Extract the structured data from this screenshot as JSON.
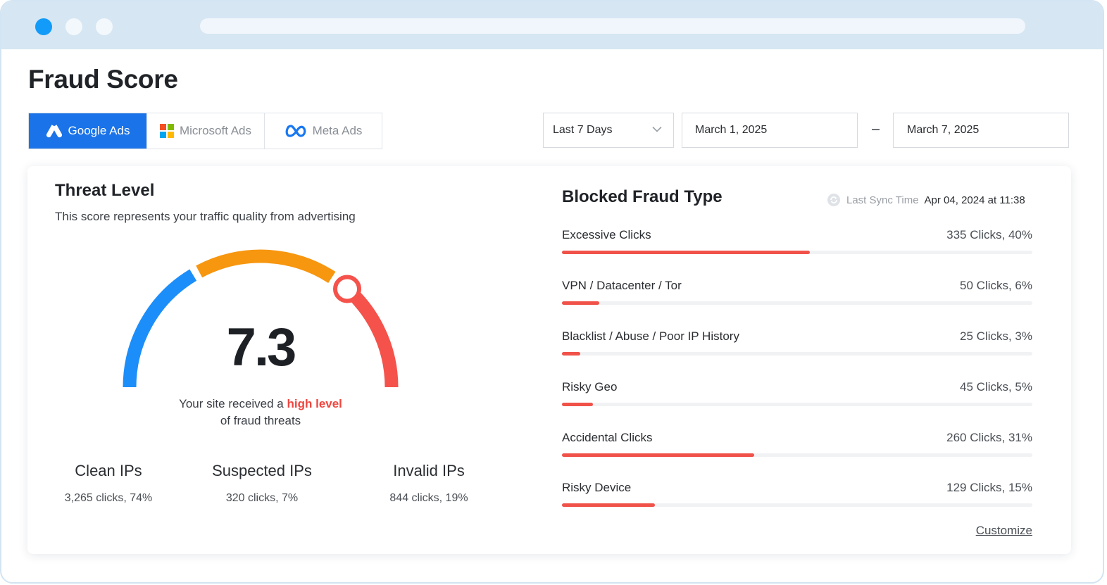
{
  "page": {
    "title": "Fraud Score"
  },
  "platform_tabs": [
    {
      "label": "Google Ads",
      "icon": "google-ads-icon",
      "active": true
    },
    {
      "label": "Microsoft Ads",
      "icon": "microsoft-icon",
      "active": false
    },
    {
      "label": "Meta Ads",
      "icon": "meta-icon",
      "active": false
    }
  ],
  "filters": {
    "range": "Last 7 Days",
    "start_date": "March 1, 2025",
    "end_date": "March 7, 2025"
  },
  "threat": {
    "title": "Threat Level",
    "subtitle": "This score represents your traffic quality from advertising",
    "score": "7.3",
    "score_fraction": 0.73,
    "message_pre": "Your site received a",
    "message_highlight": "high level",
    "message_post": "of fraud threats",
    "colors": {
      "low": "#1c8ef9",
      "medium": "#f7960f",
      "high": "#f5524b"
    },
    "stats": [
      {
        "label": "Clean IPs",
        "value": "3,265 clicks, 74%"
      },
      {
        "label": "Suspected IPs",
        "value": "320 clicks, 7%"
      },
      {
        "label": "Invalid IPs",
        "value": "844 clicks, 19%"
      }
    ]
  },
  "fraud": {
    "title": "Blocked Fraud Type",
    "sync_label": "Last Sync Time",
    "sync_value": "Apr 04, 2024 at 11:38",
    "items": [
      {
        "name": "Excessive Clicks",
        "stat": "335 Clicks, 40%",
        "percent": 40
      },
      {
        "name": "VPN / Datacenter / Tor",
        "stat": "50 Clicks, 6%",
        "percent": 6
      },
      {
        "name": "Blacklist / Abuse / Poor IP History",
        "stat": "25 Clicks, 3%",
        "percent": 3
      },
      {
        "name": "Risky Geo",
        "stat": "45 Clicks, 5%",
        "percent": 5
      },
      {
        "name": "Accidental Clicks",
        "stat": "260 Clicks, 31%",
        "percent": 31
      },
      {
        "name": "Risky Device",
        "stat": "129 Clicks, 15%",
        "percent": 15
      }
    ],
    "customize_label": "Customize",
    "bar_color": "#f0524a"
  }
}
